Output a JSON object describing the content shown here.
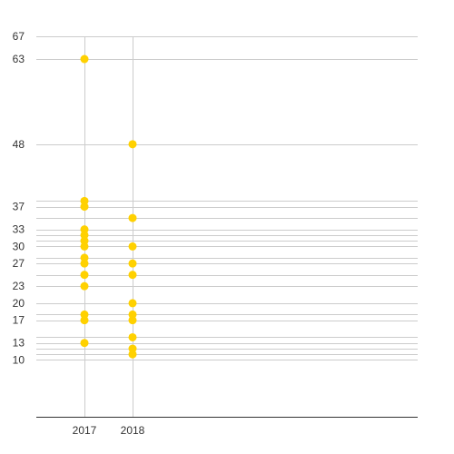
{
  "chart_data": {
    "type": "scatter",
    "title": "",
    "xlabel": "",
    "ylabel": "",
    "x_categories": [
      "2017",
      "2018"
    ],
    "ylim": [
      0,
      67
    ],
    "y_ticks": [
      67,
      63,
      48,
      37,
      33,
      30,
      27,
      23,
      20,
      17,
      13,
      10
    ],
    "y_gridlines": [
      67,
      63,
      48,
      38,
      37,
      35,
      33,
      32,
      31,
      30,
      28,
      27,
      25,
      23,
      20,
      18,
      17,
      14,
      13,
      12,
      11,
      10
    ],
    "grid": true,
    "series": [
      {
        "color": "#FFD100",
        "points": [
          {
            "x": "2017",
            "y": 63
          },
          {
            "x": "2017",
            "y": 38
          },
          {
            "x": "2017",
            "y": 37
          },
          {
            "x": "2017",
            "y": 33
          },
          {
            "x": "2017",
            "y": 32
          },
          {
            "x": "2017",
            "y": 31
          },
          {
            "x": "2017",
            "y": 30
          },
          {
            "x": "2017",
            "y": 28
          },
          {
            "x": "2017",
            "y": 27
          },
          {
            "x": "2017",
            "y": 25
          },
          {
            "x": "2017",
            "y": 23
          },
          {
            "x": "2017",
            "y": 18
          },
          {
            "x": "2017",
            "y": 17
          },
          {
            "x": "2017",
            "y": 13
          },
          {
            "x": "2018",
            "y": 48
          },
          {
            "x": "2018",
            "y": 35
          },
          {
            "x": "2018",
            "y": 30
          },
          {
            "x": "2018",
            "y": 27
          },
          {
            "x": "2018",
            "y": 25
          },
          {
            "x": "2018",
            "y": 20
          },
          {
            "x": "2018",
            "y": 18
          },
          {
            "x": "2018",
            "y": 17
          },
          {
            "x": "2018",
            "y": 14
          },
          {
            "x": "2018",
            "y": 12
          },
          {
            "x": "2018",
            "y": 11
          }
        ]
      }
    ],
    "colors": {
      "gridline": "#CCCCCC",
      "axis": "#333333",
      "marker": "#FFD100"
    }
  }
}
